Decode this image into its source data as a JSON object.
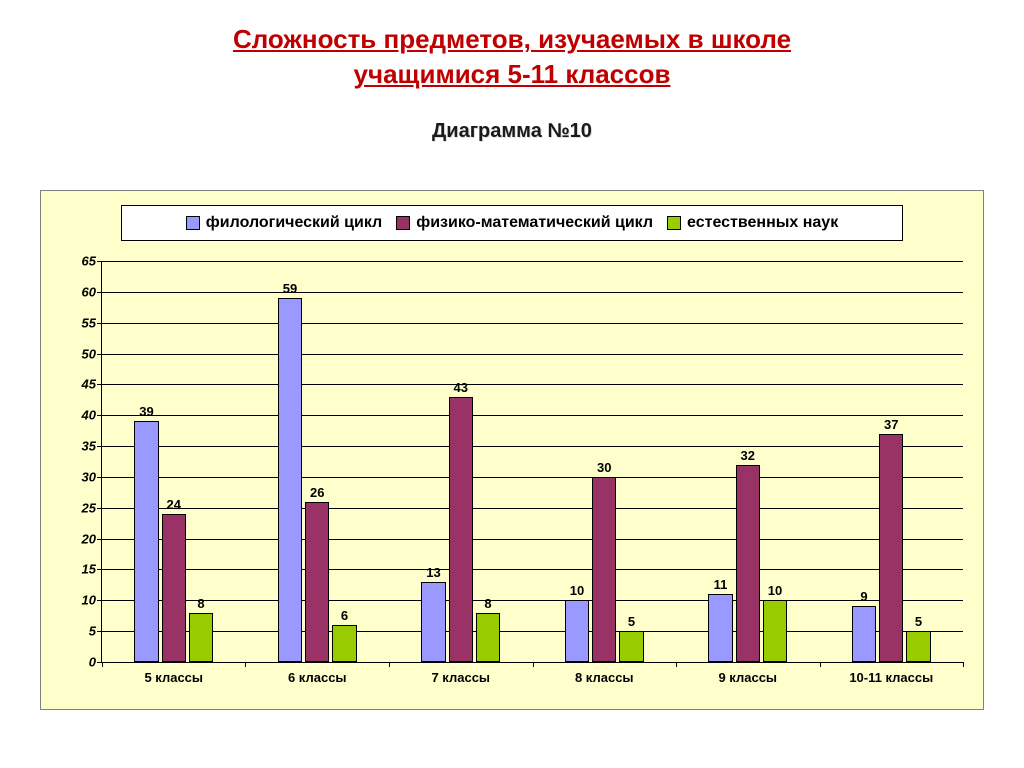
{
  "title_line1": "Сложность предметов, изучаемых в школе",
  "title_line2": "учащимися 5-11 классов",
  "title_color": "#c00000",
  "subtitle": "Диаграмма №10",
  "chart": {
    "type": "bar",
    "background_color": "#ffffcc",
    "border_color": "#7f7f7f",
    "plot_border_color": "#000000",
    "grid_color": "#000000",
    "y_axis": {
      "min": 0,
      "max": 65,
      "step": 5,
      "label_fontsize": 13,
      "label_style": "italic bold"
    },
    "categories": [
      "5 классы",
      "6 классы",
      "7 классы",
      "8 классы",
      "9 классы",
      "10-11 классы"
    ],
    "series": [
      {
        "name": "филологический цикл",
        "color": "#9999ff",
        "values": [
          39,
          59,
          13,
          10,
          11,
          9
        ]
      },
      {
        "name": "физико-математический цикл",
        "color": "#993366",
        "values": [
          24,
          26,
          43,
          30,
          32,
          37
        ]
      },
      {
        "name": "естественных наук",
        "color": "#99cc00",
        "values": [
          8,
          6,
          8,
          5,
          10,
          5
        ]
      }
    ],
    "bar_relative_width": 0.17,
    "bar_gap": 0.02,
    "data_label_fontsize": 13,
    "category_label_fontsize": 13,
    "legend": {
      "position": "top",
      "border_color": "#000000",
      "background": "#ffffff",
      "fontsize": 16
    }
  }
}
